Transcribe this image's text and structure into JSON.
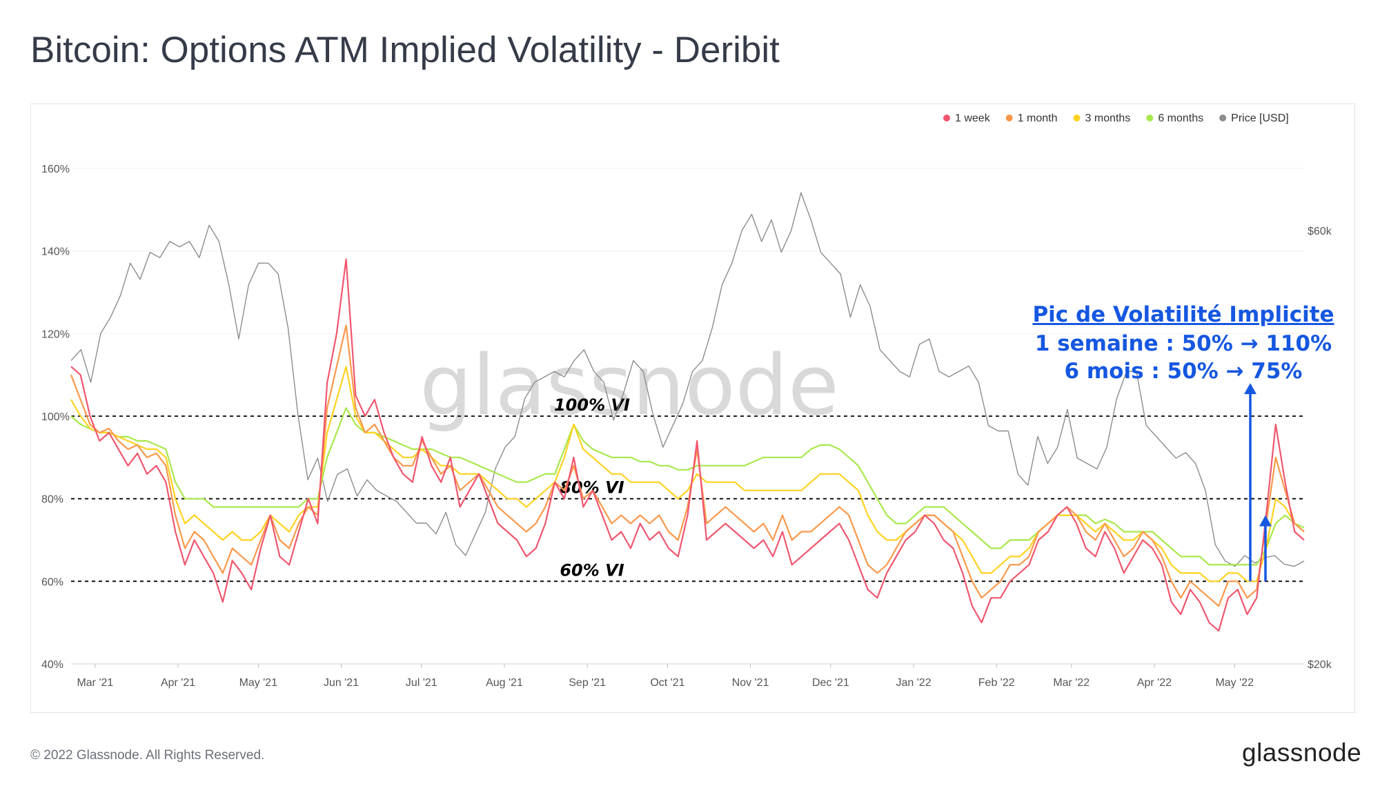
{
  "title": "Bitcoin: Options ATM Implied Volatility - Deribit",
  "footer": {
    "copyright": "© 2022 Glassnode. All Rights Reserved.",
    "logo": "glassnode"
  },
  "watermark": "glassnode",
  "annotation": {
    "title": "Pic de Volatilité Implicite",
    "line1": "1 semaine : 50% → 110%",
    "line2": "6 mois : 50% → 75%",
    "color": "#1557e0"
  },
  "chart_data": {
    "type": "line",
    "title": "Bitcoin: Options ATM Implied Volatility - Deribit",
    "x_range": [
      "2021-02-20",
      "2022-05-27"
    ],
    "y_left": {
      "range": [
        40,
        160
      ],
      "ticks": [
        "40%",
        "60%",
        "80%",
        "100%",
        "120%",
        "140%",
        "160%"
      ]
    },
    "y_right": {
      "range": [
        20000,
        66000
      ],
      "ticks": [
        "$20k",
        "$60k"
      ]
    },
    "x_ticks": [
      "Mar '21",
      "Apr '21",
      "May '21",
      "Jun '21",
      "Jul '21",
      "Aug '21",
      "Sep '21",
      "Oct '21",
      "Nov '21",
      "Dec '21",
      "Jan '22",
      "Feb '22",
      "Mar '22",
      "Apr '22",
      "May '22"
    ],
    "legend_position": "top-right",
    "reference_lines": [
      {
        "value": 100,
        "label": "100% VI"
      },
      {
        "value": 80,
        "label": "80% VI"
      },
      {
        "value": 60,
        "label": "60% VI"
      }
    ],
    "series": [
      {
        "name": "1 week",
        "color": "#f0566e",
        "axis": "left",
        "values": [
          112,
          110,
          100,
          94,
          96,
          92,
          88,
          91,
          86,
          88,
          84,
          72,
          64,
          70,
          66,
          62,
          55,
          65,
          62,
          58,
          68,
          76,
          66,
          64,
          72,
          80,
          74,
          108,
          120,
          138,
          105,
          100,
          104,
          96,
          90,
          86,
          84,
          95,
          88,
          84,
          90,
          78,
          82,
          86,
          80,
          74,
          72,
          70,
          66,
          68,
          74,
          84,
          80,
          90,
          78,
          82,
          76,
          70,
          72,
          68,
          74,
          70,
          72,
          68,
          66,
          76,
          94,
          70,
          72,
          74,
          72,
          70,
          68,
          70,
          66,
          72,
          64,
          66,
          68,
          70,
          72,
          74,
          70,
          64,
          58,
          56,
          62,
          66,
          70,
          72,
          76,
          74,
          70,
          68,
          62,
          54,
          50,
          56,
          56,
          60,
          62,
          64,
          70,
          72,
          76,
          78,
          74,
          68,
          66,
          72,
          68,
          62,
          66,
          70,
          68,
          64,
          55,
          52,
          58,
          55,
          50,
          48,
          56,
          58,
          52,
          56,
          76,
          98,
          84,
          72,
          70
        ]
      },
      {
        "name": "1 month",
        "color": "#f9984a",
        "axis": "left",
        "values": [
          110,
          104,
          98,
          96,
          97,
          94,
          92,
          93,
          90,
          91,
          88,
          76,
          68,
          72,
          70,
          66,
          62,
          68,
          66,
          64,
          70,
          76,
          70,
          68,
          74,
          78,
          76,
          102,
          112,
          122,
          102,
          96,
          98,
          94,
          90,
          88,
          88,
          94,
          90,
          86,
          88,
          82,
          84,
          86,
          82,
          78,
          76,
          74,
          72,
          74,
          78,
          84,
          82,
          88,
          80,
          82,
          78,
          74,
          76,
          74,
          76,
          74,
          76,
          72,
          70,
          78,
          92,
          74,
          76,
          78,
          76,
          74,
          72,
          74,
          70,
          76,
          70,
          72,
          72,
          74,
          76,
          78,
          76,
          70,
          64,
          62,
          64,
          68,
          72,
          74,
          76,
          76,
          74,
          72,
          66,
          60,
          56,
          58,
          60,
          64,
          64,
          66,
          72,
          74,
          76,
          78,
          76,
          72,
          70,
          74,
          70,
          66,
          68,
          72,
          70,
          66,
          60,
          56,
          60,
          58,
          56,
          54,
          60,
          60,
          56,
          58,
          74,
          90,
          82,
          74,
          72
        ]
      },
      {
        "name": "3 months",
        "color": "#ffd21f",
        "axis": "left",
        "values": [
          104,
          100,
          97,
          96,
          96,
          95,
          94,
          93,
          92,
          92,
          90,
          80,
          74,
          76,
          74,
          72,
          70,
          72,
          70,
          70,
          72,
          76,
          74,
          72,
          76,
          78,
          78,
          96,
          104,
          112,
          100,
          96,
          96,
          94,
          92,
          90,
          90,
          92,
          90,
          88,
          88,
          86,
          86,
          86,
          84,
          82,
          80,
          80,
          78,
          80,
          82,
          84,
          90,
          98,
          92,
          90,
          88,
          86,
          86,
          84,
          84,
          84,
          84,
          82,
          80,
          82,
          86,
          84,
          84,
          84,
          84,
          82,
          82,
          82,
          82,
          82,
          82,
          82,
          84,
          86,
          86,
          86,
          84,
          82,
          76,
          72,
          70,
          70,
          72,
          74,
          76,
          76,
          74,
          72,
          70,
          66,
          62,
          62,
          64,
          66,
          66,
          68,
          72,
          74,
          76,
          76,
          76,
          74,
          72,
          74,
          72,
          70,
          70,
          72,
          70,
          68,
          64,
          62,
          62,
          62,
          60,
          60,
          62,
          62,
          60,
          60,
          68,
          80,
          78,
          74,
          72
        ]
      },
      {
        "name": "6 months",
        "color": "#a8e84b",
        "axis": "left",
        "values": [
          100,
          98,
          97,
          96,
          96,
          95,
          95,
          94,
          94,
          93,
          92,
          84,
          80,
          80,
          80,
          78,
          78,
          78,
          78,
          78,
          78,
          78,
          78,
          78,
          78,
          80,
          80,
          90,
          96,
          102,
          98,
          96,
          96,
          95,
          94,
          93,
          92,
          92,
          92,
          91,
          90,
          90,
          89,
          88,
          87,
          86,
          85,
          84,
          84,
          85,
          86,
          86,
          92,
          98,
          94,
          92,
          91,
          90,
          90,
          90,
          89,
          89,
          88,
          88,
          87,
          87,
          88,
          88,
          88,
          88,
          88,
          88,
          89,
          90,
          90,
          90,
          90,
          90,
          92,
          93,
          93,
          92,
          90,
          88,
          84,
          80,
          76,
          74,
          74,
          76,
          78,
          78,
          78,
          76,
          74,
          72,
          70,
          68,
          68,
          70,
          70,
          70,
          72,
          74,
          76,
          76,
          76,
          76,
          74,
          75,
          74,
          72,
          72,
          72,
          72,
          70,
          68,
          66,
          66,
          66,
          64,
          64,
          64,
          64,
          64,
          64,
          68,
          74,
          76,
          74,
          73
        ]
      },
      {
        "name": "Price [USD]",
        "color": "#8c8c8c",
        "axis": "right",
        "values": [
          48000,
          49000,
          46000,
          50500,
          52000,
          54000,
          57000,
          55500,
          58000,
          57500,
          59000,
          58500,
          59000,
          57500,
          60500,
          59000,
          55000,
          50000,
          55000,
          57000,
          57000,
          56000,
          51000,
          43000,
          37000,
          39000,
          35000,
          37500,
          38000,
          35500,
          37000,
          36000,
          35500,
          35000,
          34000,
          33000,
          33000,
          32000,
          34000,
          31000,
          30000,
          32000,
          34000,
          38000,
          40000,
          41000,
          44500,
          46000,
          46500,
          47000,
          46500,
          48000,
          49000,
          47000,
          46000,
          42500,
          45000,
          48000,
          47000,
          43000,
          40000,
          42000,
          44000,
          47000,
          48000,
          51000,
          55000,
          57000,
          60000,
          61500,
          59000,
          61000,
          58000,
          60000,
          63500,
          61000,
          58000,
          57000,
          56000,
          52000,
          55000,
          53000,
          49000,
          48000,
          47000,
          46500,
          49500,
          50000,
          47000,
          46500,
          47000,
          47500,
          46000,
          42000,
          41500,
          41500,
          37500,
          36500,
          41000,
          38500,
          40000,
          43500,
          39000,
          38500,
          38000,
          40000,
          44500,
          47000,
          47000,
          42000,
          41000,
          40000,
          39000,
          39500,
          38500,
          36000,
          31000,
          29500,
          29000,
          30000,
          29300,
          29800,
          30000,
          29200,
          29000,
          29500
        ]
      }
    ]
  }
}
